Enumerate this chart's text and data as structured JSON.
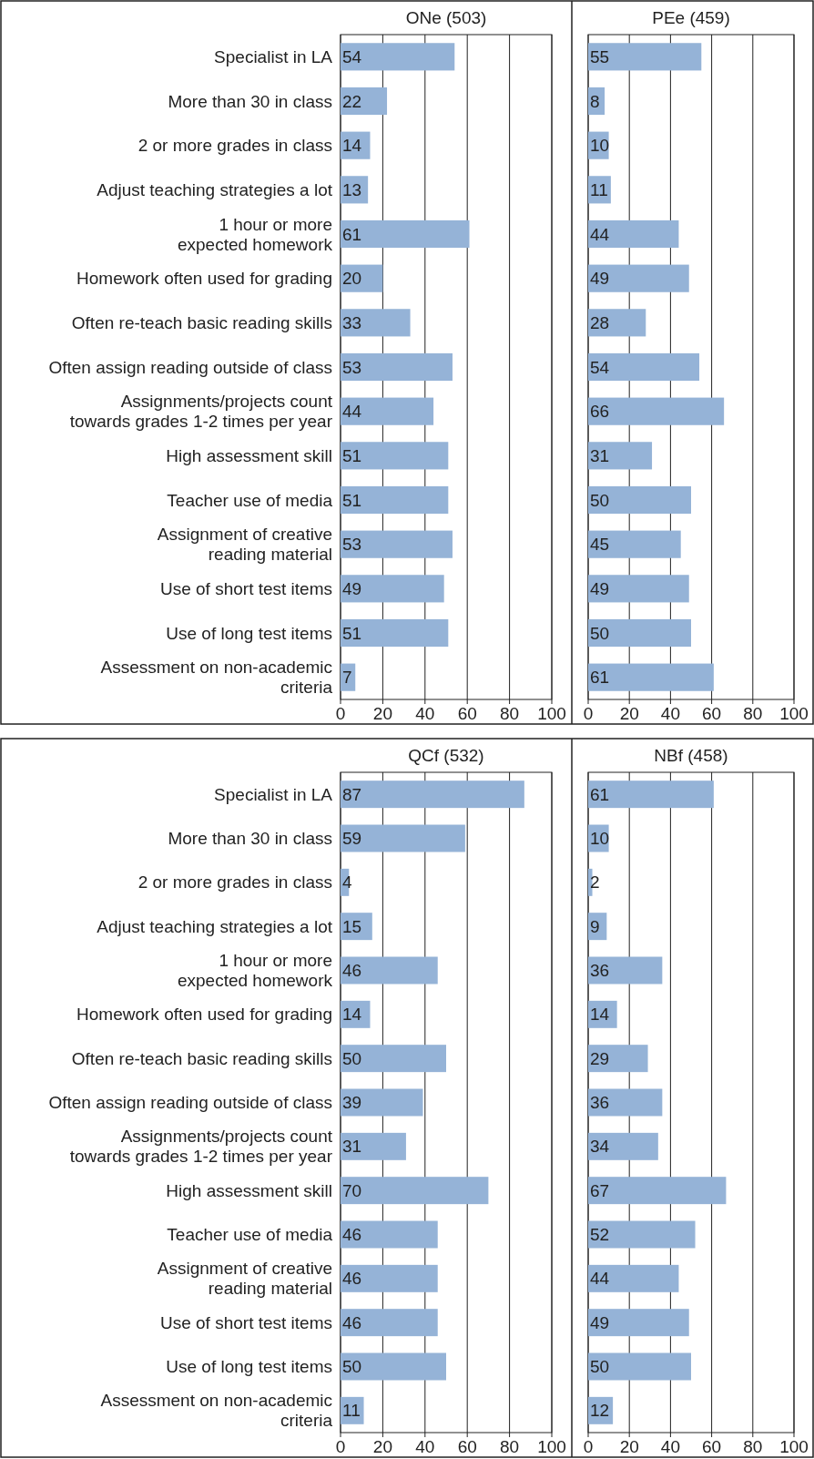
{
  "chart_data": [
    {
      "type": "bar",
      "orientation": "horizontal",
      "title": "ONe (503)",
      "categories": [
        "Specialist in LA",
        "More than 30 in class",
        "2 or more grades in class",
        "Adjust teaching strategies a lot",
        "1 hour or more\nexpected homework",
        "Homework often used for grading",
        "Often re-teach basic reading skills",
        "Often assign reading outside of class",
        "Assignments/projects count\ntowards grades 1-2 times per year",
        "High assessment skill",
        "Teacher use of media",
        "Assignment of creative\nreading material",
        "Use of short test items",
        "Use of long test items",
        "Assessment on non-academic\ncriteria"
      ],
      "values": [
        54,
        22,
        14,
        13,
        61,
        20,
        33,
        53,
        44,
        51,
        51,
        53,
        49,
        51,
        7
      ],
      "color": "#95b3d7",
      "xlim": [
        0,
        100
      ],
      "xticks": [
        0,
        20,
        40,
        60,
        80,
        100
      ],
      "grid": "x",
      "data_labels": true
    },
    {
      "type": "bar",
      "orientation": "horizontal",
      "title": "PEe (459)",
      "categories": [
        null,
        null,
        null,
        null,
        null,
        null,
        null,
        null,
        null,
        null,
        null,
        null,
        null,
        null,
        null
      ],
      "values": [
        55,
        8,
        10,
        11,
        44,
        49,
        28,
        54,
        66,
        31,
        50,
        45,
        49,
        50,
        61
      ],
      "color": "#95b3d7",
      "xlim": [
        0,
        100
      ],
      "xticks": [
        0,
        20,
        40,
        60,
        80,
        100
      ],
      "grid": "x",
      "data_labels": true,
      "tick_labels": "x"
    },
    {
      "type": "bar",
      "orientation": "horizontal",
      "title": "QCf (532)",
      "categories": [
        "Specialist in LA",
        "More than 30 in class",
        "2 or more grades in class",
        "Adjust teaching strategies a lot",
        "1 hour or more\nexpected homework",
        "Homework often used for grading",
        "Often re-teach basic reading skills",
        "Often assign reading outside of class",
        "Assignments/projects count\ntowards grades 1-2 times per year",
        "High assessment skill",
        "Teacher use of media",
        "Assignment of creative\nreading material",
        "Use of short test items",
        "Use of long test items",
        "Assessment on non-academic\ncriteria"
      ],
      "values": [
        87,
        59,
        4,
        15,
        46,
        14,
        50,
        39,
        31,
        70,
        46,
        46,
        46,
        50,
        11
      ],
      "color": "#95b3d7",
      "xlim": [
        0,
        100
      ],
      "xticks": [
        0,
        20,
        40,
        60,
        80,
        100
      ],
      "grid": "x",
      "data_labels": true
    },
    {
      "type": "bar",
      "orientation": "horizontal",
      "title": "NBf (458)",
      "categories": [
        null,
        null,
        null,
        null,
        null,
        null,
        null,
        null,
        null,
        null,
        null,
        null,
        null,
        null,
        null
      ],
      "values": [
        61,
        10,
        2,
        9,
        36,
        14,
        29,
        36,
        34,
        67,
        52,
        44,
        49,
        50,
        12
      ],
      "color": "#95b3d7",
      "xlim": [
        0,
        100
      ],
      "xticks": [
        0,
        20,
        40,
        60,
        80,
        100
      ],
      "grid": "x",
      "data_labels": true,
      "tick_labels": "x"
    }
  ]
}
